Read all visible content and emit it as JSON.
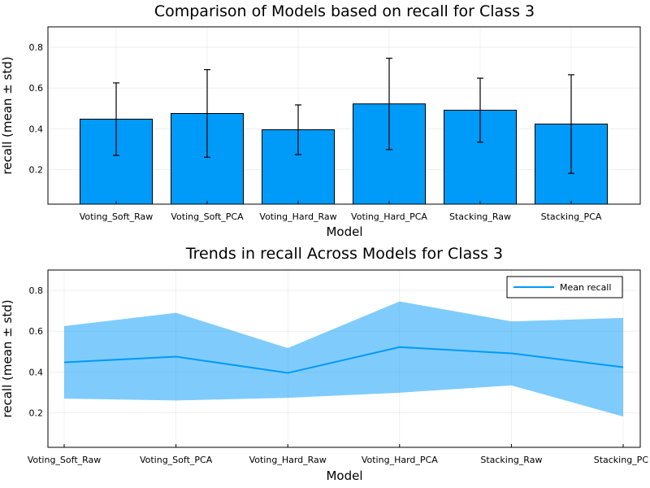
{
  "chart_data": [
    {
      "type": "bar",
      "title": "Comparison of Models based on recall for Class 3",
      "xlabel": "Model",
      "ylabel": "recall (mean ± std)",
      "categories": [
        "Voting_Soft_Raw",
        "Voting_Soft_PCA",
        "Voting_Hard_Raw",
        "Voting_Hard_PCA",
        "Stacking_Raw",
        "Stacking_PCA"
      ],
      "values": [
        0.447,
        0.475,
        0.395,
        0.522,
        0.491,
        0.423
      ],
      "std": [
        0.178,
        0.215,
        0.122,
        0.224,
        0.157,
        0.242
      ],
      "ylim": [
        0.03,
        0.9
      ],
      "yticks": [
        0.2,
        0.4,
        0.6,
        0.8
      ],
      "ytick_labels": [
        "0.2",
        "0.4",
        "0.6",
        "0.8"
      ],
      "grid": true,
      "color": "#009af9"
    },
    {
      "type": "line",
      "title": "Trends in recall Across Models for Class 3",
      "xlabel": "Model",
      "ylabel": "recall (mean ± std)",
      "categories": [
        "Voting_Soft_Raw",
        "Voting_Soft_PCA",
        "Voting_Hard_Raw",
        "Voting_Hard_PCA",
        "Stacking_Raw",
        "Stacking_PC"
      ],
      "series": [
        {
          "name": "Mean recall",
          "values": [
            0.447,
            0.475,
            0.395,
            0.522,
            0.491,
            0.423
          ],
          "std": [
            0.178,
            0.215,
            0.122,
            0.224,
            0.157,
            0.242
          ]
        }
      ],
      "ylim": [
        0.03,
        0.9
      ],
      "yticks": [
        0.2,
        0.4,
        0.6,
        0.8
      ],
      "ytick_labels": [
        "0.2",
        "0.4",
        "0.6",
        "0.8"
      ],
      "grid": true,
      "legend": "top-right",
      "color": "#009af9"
    }
  ]
}
